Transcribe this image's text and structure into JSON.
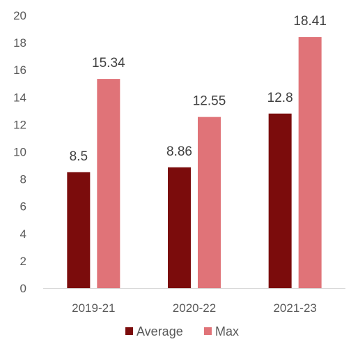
{
  "chart_data": {
    "type": "bar",
    "categories": [
      "2019-21",
      "2020-22",
      "2021-23"
    ],
    "series": [
      {
        "name": "Average",
        "values": [
          8.5,
          8.86,
          12.8
        ],
        "color": "#7b0c0c"
      },
      {
        "name": "Max",
        "values": [
          15.34,
          12.55,
          18.41
        ],
        "color": "#e07378"
      }
    ],
    "data_labels": [
      [
        "8.5",
        "8.86",
        "12.8"
      ],
      [
        "15.34",
        "12.55",
        "18.41"
      ]
    ],
    "ylim": [
      0,
      20
    ],
    "yticks": [
      "0",
      "2",
      "4",
      "6",
      "8",
      "10",
      "12",
      "14",
      "16",
      "18",
      "20"
    ],
    "grid": false,
    "legend": "bottom"
  }
}
